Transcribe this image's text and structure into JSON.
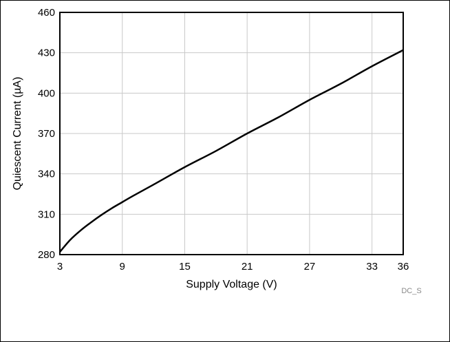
{
  "chart_data": {
    "type": "line",
    "xlabel": "Supply Voltage (V)",
    "ylabel": "Quiescent Current (µA)",
    "xlim": [
      3,
      36
    ],
    "ylim": [
      280,
      460
    ],
    "x_ticks": [
      3,
      9,
      15,
      21,
      27,
      33,
      36
    ],
    "y_ticks": [
      280,
      310,
      340,
      370,
      400,
      430,
      460
    ],
    "grid": true,
    "footnote": "DC_S",
    "series": [
      {
        "color": "#000000",
        "x": [
          3,
          4,
          5,
          6,
          7,
          8,
          9,
          10,
          12,
          15,
          18,
          21,
          24,
          27,
          30,
          33,
          36
        ],
        "y": [
          282,
          291,
          298,
          304,
          309.5,
          314.5,
          319,
          323.5,
          332,
          345,
          357,
          370,
          382,
          395,
          407,
          420,
          432
        ]
      }
    ]
  }
}
